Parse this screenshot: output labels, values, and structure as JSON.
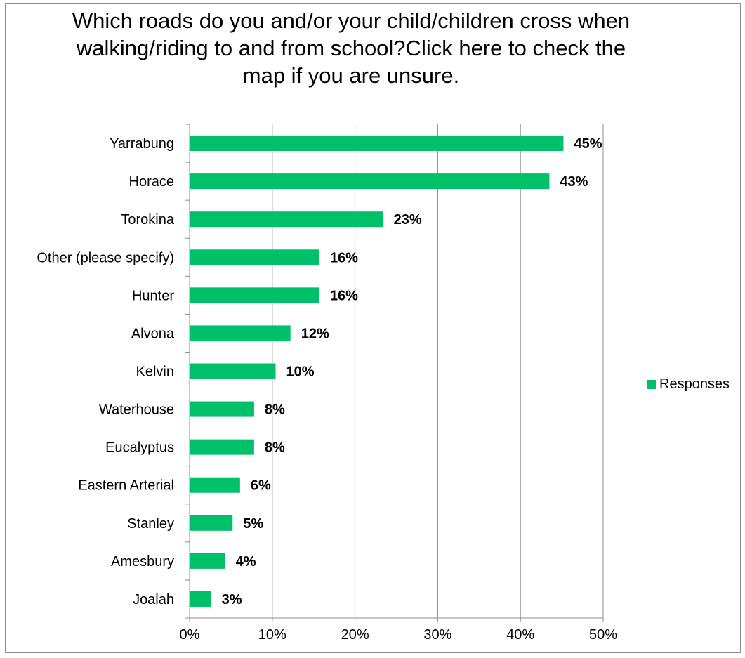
{
  "chart_data": {
    "type": "bar",
    "orientation": "horizontal",
    "title": "Which roads do you and/or your child/children cross when walking/riding to and from school?Click here to check the map if you are unsure.",
    "categories": [
      "Yarrabung",
      "Horace",
      "Torokina",
      "Other (please specify)",
      "Hunter",
      "Alvona",
      "Kelvin",
      "Waterhouse",
      "Eucalyptus",
      "Eastern Arterial",
      "Stanley",
      "Amesbury",
      "Joalah"
    ],
    "series": [
      {
        "name": "Responses",
        "color": "#00c06a",
        "values": [
          45.2,
          43.5,
          23.4,
          15.7,
          15.7,
          12.2,
          10.4,
          7.8,
          7.8,
          6.1,
          5.2,
          4.3,
          2.6
        ],
        "labels": [
          "45%",
          "43%",
          "23%",
          "16%",
          "16%",
          "12%",
          "10%",
          "8%",
          "8%",
          "6%",
          "5%",
          "4%",
          "3%"
        ]
      }
    ],
    "xlim": [
      0,
      50
    ],
    "xticks": [
      "0%",
      "10%",
      "20%",
      "30%",
      "40%",
      "50%"
    ],
    "xtick_values": [
      0,
      10,
      20,
      30,
      40,
      50
    ],
    "xlabel": "",
    "ylabel": "",
    "grid": "vertical",
    "legend": "right"
  }
}
